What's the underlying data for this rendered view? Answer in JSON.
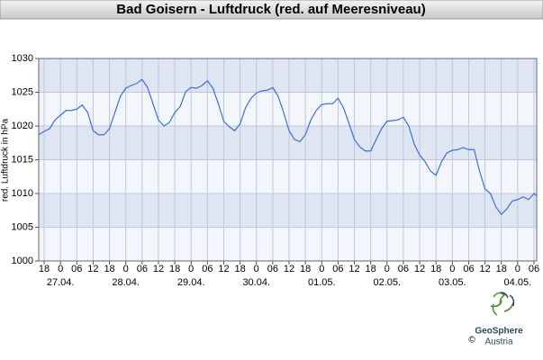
{
  "chart_data": {
    "type": "line",
    "title": "Bad Goisern - Luftdruck (red. auf Meeresniveau)",
    "y_label": "red. Luftdruck in hPa",
    "credit": "©",
    "logo_text": [
      "GeoSphere",
      "Austria"
    ],
    "x": [
      -2,
      0,
      2,
      4,
      6,
      8,
      10,
      12,
      14,
      16,
      18,
      20,
      22,
      24,
      26,
      28,
      30,
      32,
      34,
      36,
      38,
      40,
      42,
      44,
      46,
      48,
      50,
      52,
      54,
      56,
      58,
      60,
      62,
      64,
      66,
      68,
      70,
      72,
      74,
      76,
      78,
      80,
      82,
      84,
      86,
      88,
      90,
      92,
      94,
      96,
      98,
      100,
      102,
      104,
      106,
      108,
      110,
      112,
      114,
      116,
      118,
      120,
      122,
      124,
      126,
      128,
      130,
      132,
      134,
      136,
      138,
      140,
      142,
      144,
      146,
      148,
      150,
      152,
      154,
      156,
      158,
      160,
      162,
      164,
      166,
      168,
      170,
      172,
      174,
      176,
      178,
      180,
      181
    ],
    "series": [
      {
        "color": "#3d6fd6",
        "values": [
          1018.7,
          1019.2,
          1019.6,
          1020.9,
          1021.6,
          1022.3,
          1022.3,
          1022.5,
          1023.1,
          1022,
          1019.3,
          1018.7,
          1018.7,
          1019.6,
          1022,
          1024.4,
          1025.6,
          1026,
          1026.3,
          1026.9,
          1025.7,
          1023.3,
          1020.9,
          1020,
          1020.5,
          1022,
          1022.9,
          1025.1,
          1025.7,
          1025.6,
          1026,
          1026.7,
          1025.6,
          1023.3,
          1020.7,
          1019.9,
          1019.3,
          1020.3,
          1022.7,
          1024.1,
          1024.9,
          1025.2,
          1025.3,
          1025.7,
          1024.4,
          1022,
          1019.3,
          1018,
          1017.7,
          1018.7,
          1020.9,
          1022.3,
          1023.2,
          1023.3,
          1023.3,
          1024.1,
          1022.7,
          1020.4,
          1018,
          1016.9,
          1016.3,
          1016.3,
          1018,
          1019.6,
          1020.7,
          1020.8,
          1020.9,
          1021.3,
          1020,
          1017.3,
          1015.7,
          1014.7,
          1013.3,
          1012.7,
          1014.7,
          1016,
          1016.4,
          1016.5,
          1016.8,
          1016.5,
          1016.5,
          1013.3,
          1010.7,
          1010,
          1008,
          1006.9,
          1007.7,
          1008.9,
          1009.1,
          1009.5,
          1009.1,
          1010,
          1009.7
        ]
      }
    ],
    "xlim": [
      -2,
      181
    ],
    "ylim": [
      1000,
      1030
    ],
    "yticks": [
      1000,
      1005,
      1010,
      1015,
      1020,
      1025,
      1030
    ],
    "xticks": [
      {
        "value": 0,
        "label": "18"
      },
      {
        "value": 6,
        "label": "0"
      },
      {
        "value": 12,
        "label": "06"
      },
      {
        "value": 18,
        "label": "12"
      },
      {
        "value": 24,
        "label": "18"
      },
      {
        "value": 30,
        "label": "0"
      },
      {
        "value": 36,
        "label": "06"
      },
      {
        "value": 42,
        "label": "12"
      },
      {
        "value": 48,
        "label": "18"
      },
      {
        "value": 54,
        "label": "0"
      },
      {
        "value": 60,
        "label": "06"
      },
      {
        "value": 66,
        "label": "12"
      },
      {
        "value": 72,
        "label": "18"
      },
      {
        "value": 78,
        "label": "0"
      },
      {
        "value": 84,
        "label": "06"
      },
      {
        "value": 90,
        "label": "12"
      },
      {
        "value": 96,
        "label": "18"
      },
      {
        "value": 102,
        "label": "0"
      },
      {
        "value": 108,
        "label": "06"
      },
      {
        "value": 114,
        "label": "12"
      },
      {
        "value": 120,
        "label": "18"
      },
      {
        "value": 126,
        "label": "0"
      },
      {
        "value": 132,
        "label": "06"
      },
      {
        "value": 138,
        "label": "12"
      },
      {
        "value": 144,
        "label": "18"
      },
      {
        "value": 150,
        "label": "0"
      },
      {
        "value": 156,
        "label": "06"
      },
      {
        "value": 162,
        "label": "12"
      },
      {
        "value": 168,
        "label": "18"
      },
      {
        "value": 174,
        "label": "0"
      },
      {
        "value": 180,
        "label": "06"
      }
    ],
    "date_ticks": [
      {
        "value": 6,
        "label": "27.04."
      },
      {
        "value": 30,
        "label": "28.04."
      },
      {
        "value": 54,
        "label": "29.04."
      },
      {
        "value": 78,
        "label": "30.04."
      },
      {
        "value": 102,
        "label": "01.05."
      },
      {
        "value": 126,
        "label": "02.05."
      },
      {
        "value": 150,
        "label": "03.05."
      },
      {
        "value": 174,
        "label": "04.05."
      }
    ],
    "grid": true
  }
}
